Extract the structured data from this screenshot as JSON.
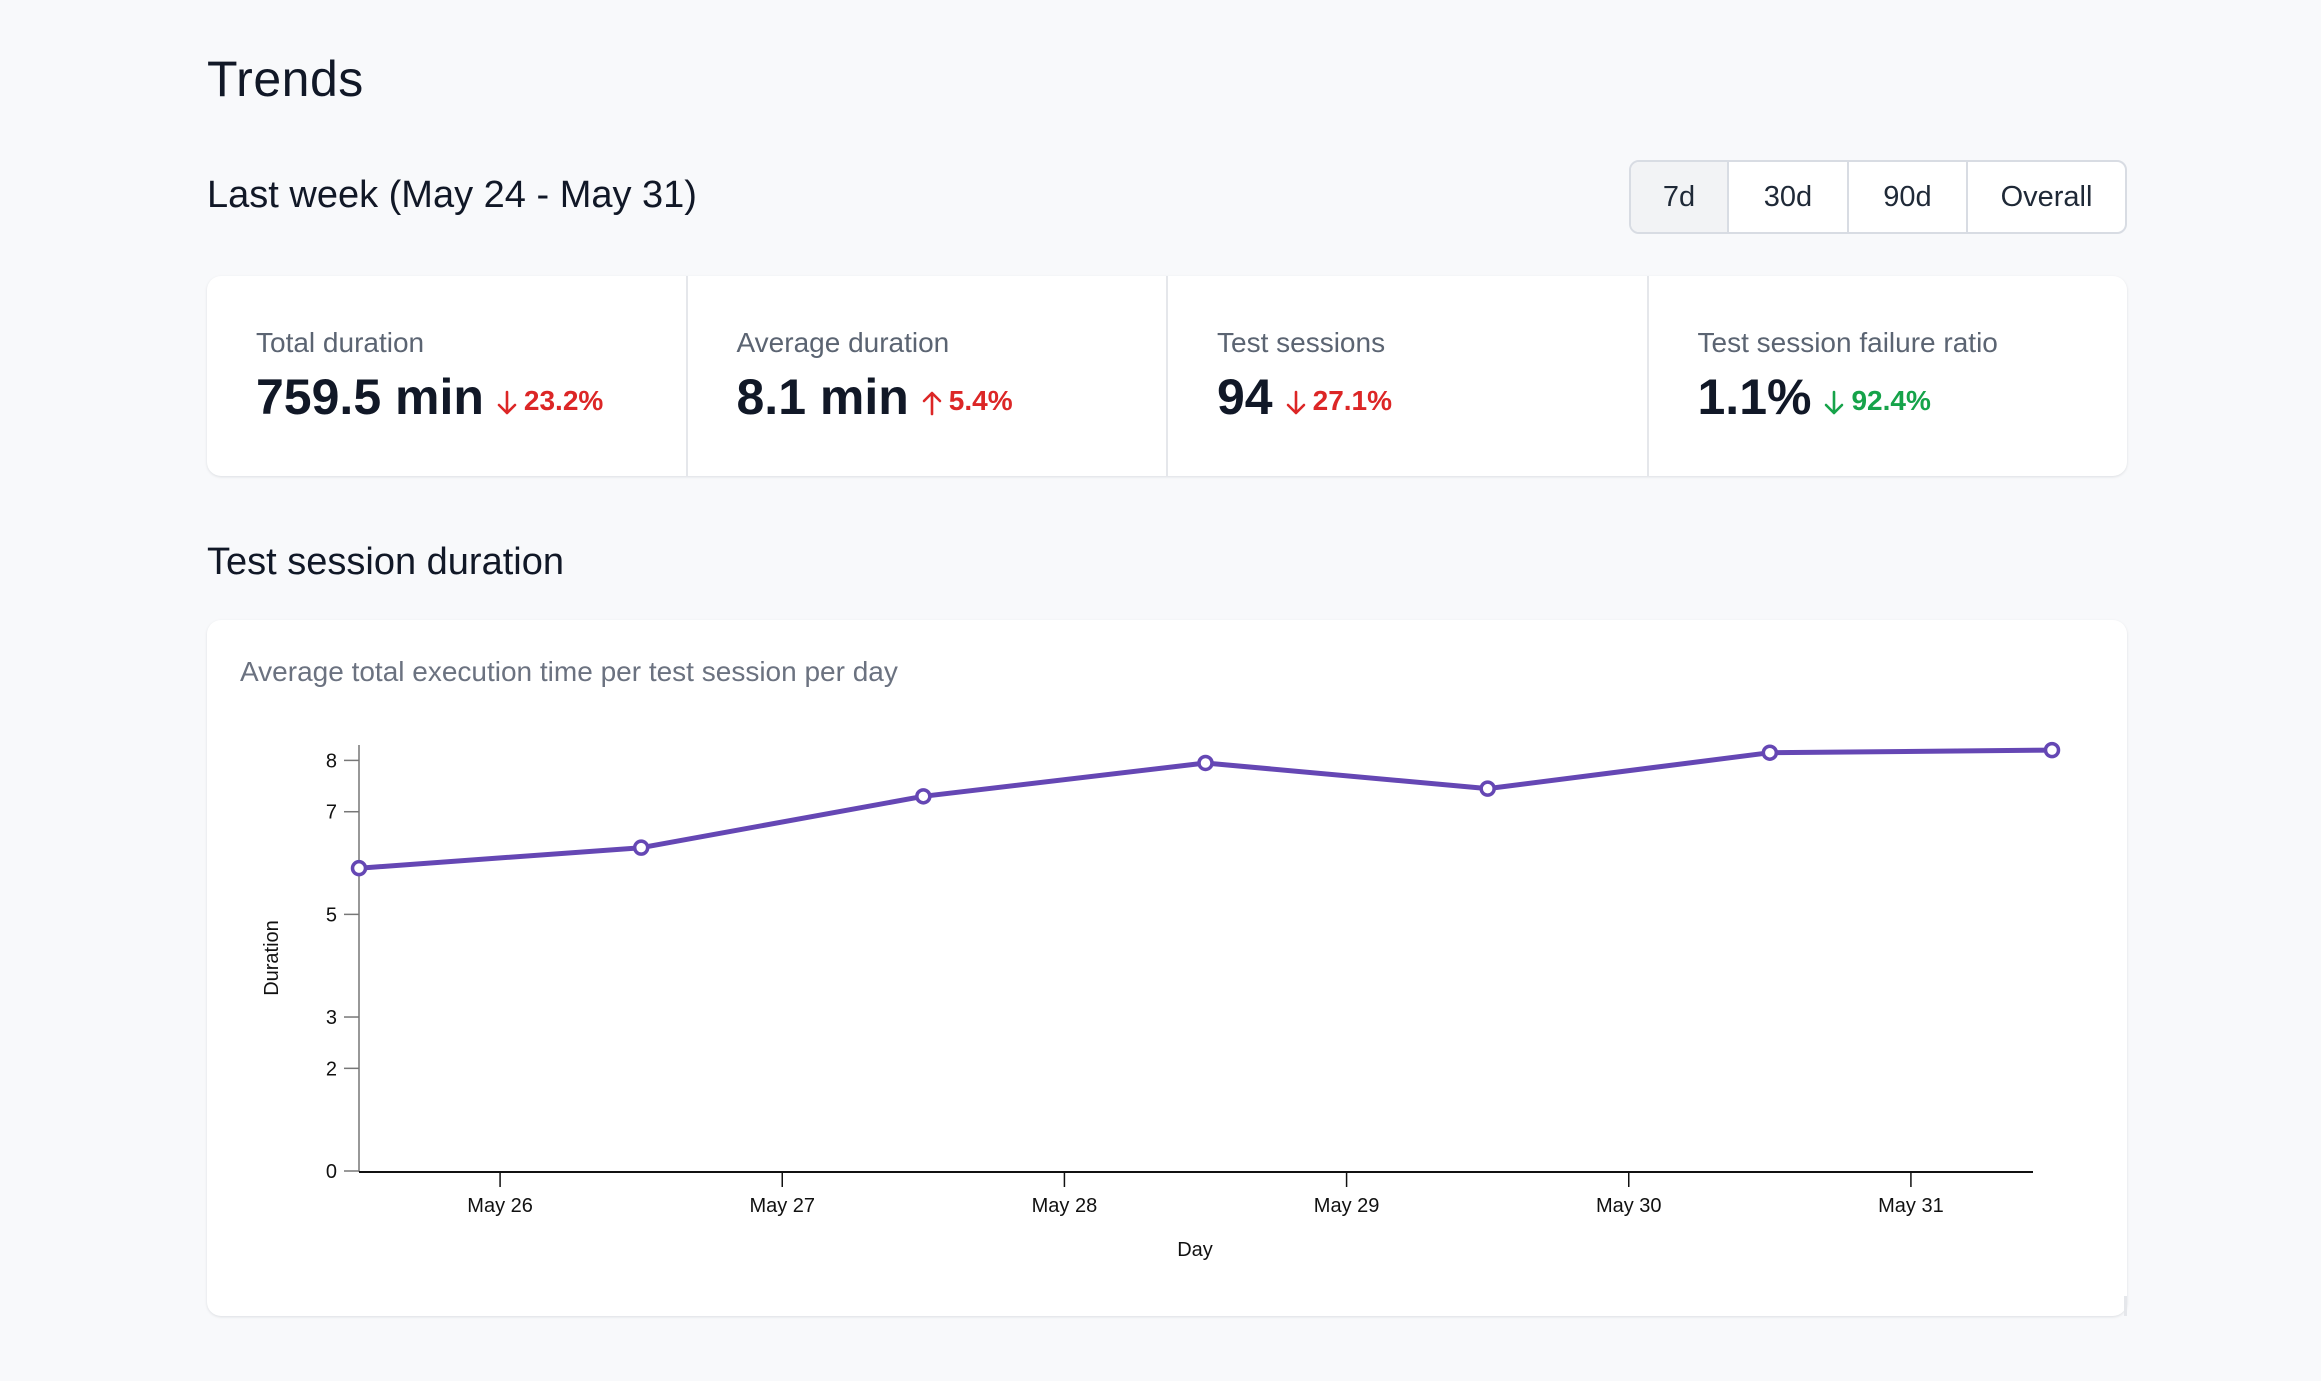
{
  "page": {
    "title": "Trends",
    "period_title": "Last week (May 24 - May 31)"
  },
  "range_selector": {
    "options": [
      "7d",
      "30d",
      "90d",
      "Overall"
    ],
    "selected": "7d"
  },
  "stats": [
    {
      "label": "Total duration",
      "value": "759.5 min",
      "change": "23.2%",
      "direction": "down",
      "color": "#dc2626"
    },
    {
      "label": "Average duration",
      "value": "8.1 min",
      "change": "5.4%",
      "direction": "up",
      "color": "#dc2626"
    },
    {
      "label": "Test sessions",
      "value": "94",
      "change": "27.1%",
      "direction": "down",
      "color": "#dc2626"
    },
    {
      "label": "Test session failure ratio",
      "value": "1.1%",
      "change": "92.4%",
      "direction": "down",
      "color": "#16a34a"
    }
  ],
  "section": {
    "title": "Test session duration"
  },
  "chart_card": {
    "subtitle": "Average total execution time per test session per day"
  },
  "chart_data": {
    "type": "line",
    "xlabel": "Day",
    "ylabel": "Duration",
    "x_ticks": [
      "May 26",
      "May 27",
      "May 28",
      "May 29",
      "May 30",
      "May 31"
    ],
    "y_ticks": [
      0,
      2,
      3,
      5,
      7,
      8
    ],
    "ylim": [
      0,
      8.3
    ],
    "grid": false,
    "color": "#6547b4",
    "points": [
      {
        "x": "2024-05-25T12:00",
        "y": 5.9
      },
      {
        "x": "2024-05-26T12:00",
        "y": 6.3
      },
      {
        "x": "2024-05-27T12:00",
        "y": 7.3
      },
      {
        "x": "2024-05-28T12:00",
        "y": 7.95
      },
      {
        "x": "2024-05-29T12:00",
        "y": 7.45
      },
      {
        "x": "2024-05-30T12:00",
        "y": 8.15
      },
      {
        "x": "2024-05-31T12:00",
        "y": 8.2
      }
    ]
  }
}
